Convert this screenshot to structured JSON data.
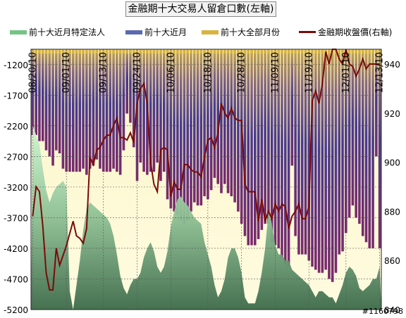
{
  "chart_data": {
    "type": "bar",
    "title": "金融期十大交易人留倉口數(左軸)",
    "legend": [
      {
        "name": "前十大近月特定法人",
        "color": "#74c484"
      },
      {
        "name": "前十大近月",
        "color": "#5a6ab0"
      },
      {
        "name": "前十大全部月份",
        "color": "#d9b340"
      },
      {
        "name": "金融期收盤價(右軸)",
        "color": "#7a0a0a"
      }
    ],
    "x_tick_labels": [
      "08/20/10",
      "09/01/10",
      "09/13/10",
      "09/24/10",
      "10/06/10",
      "10/18/10",
      "10/28/10",
      "11/09/10",
      "11/19/10",
      "12/01/10",
      "12/13/10"
    ],
    "y_left": {
      "ticks": [
        -1200,
        -1700,
        -2200,
        -2700,
        -3200,
        -3700,
        -4200,
        -4700,
        -5200
      ],
      "min": -5200,
      "max": -950
    },
    "y_right": {
      "ticks": [
        840,
        860,
        880,
        900,
        920,
        940
      ],
      "min": 840,
      "max": 946
    },
    "series": [
      {
        "name": "前十大全部月份",
        "kind": "bar-gradient",
        "values": [
          -2350,
          -2350,
          -2450,
          -2450,
          -2600,
          -2700,
          -2850,
          -2600,
          -2650,
          -2900,
          -2950,
          -2950,
          -2950,
          -2950,
          -2950,
          -2900,
          -3000,
          -2900,
          -2850,
          -2750,
          -2900,
          -2950,
          -2950,
          -2950,
          -2900,
          -2950,
          -3000,
          -2600,
          -2000,
          -2150,
          -2550,
          -3100,
          -2800,
          -2950,
          -3000,
          -2950,
          -2950,
          -2800,
          -3100,
          -2950,
          -3400,
          -3550,
          -3600,
          -3650,
          -3750,
          -3800,
          -3750,
          -3600,
          -3450,
          -3500,
          -3500,
          -3350,
          -3400,
          -3250,
          -3050,
          -3150,
          -3300,
          -3150,
          -3300,
          -3350,
          -3450,
          -3600,
          -3800,
          -4000,
          -4150,
          -4150,
          -4150,
          -4050,
          -3900,
          -3800,
          -3800,
          -4100,
          -4150,
          -4200,
          -4350,
          -4450,
          -4500,
          -2850,
          -4000,
          -4300,
          -4300,
          -4300,
          -4400,
          -4500,
          -4550,
          -4600,
          -4600,
          -4550,
          -4700,
          -4750,
          -4600,
          -4300,
          -4250,
          -3950,
          -3700,
          -3500,
          -3700,
          -3800,
          -4000,
          -4100,
          -4200,
          -4200,
          -2700,
          -4200
        ],
        "color": "#5a3a8a"
      },
      {
        "name": "前十大近月特定法人",
        "kind": "area",
        "values": [
          -2200,
          -2350,
          -2500,
          -2900,
          -3250,
          -3450,
          -3300,
          -3200,
          -3150,
          -3100,
          -3200,
          -4900,
          -5200,
          -4800,
          -4400,
          -3900,
          -3550,
          -3450,
          -3500,
          -3550,
          -3600,
          -3650,
          -3700,
          -3800,
          -4000,
          -4300,
          -4650,
          -4850,
          -4950,
          -4800,
          -4700,
          -4700,
          -4600,
          -4350,
          -4200,
          -4100,
          -4250,
          -4500,
          -4600,
          -4500,
          -4250,
          -3850,
          -3600,
          -3400,
          -3350,
          -3450,
          -3500,
          -3600,
          -3700,
          -3750,
          -3800,
          -4100,
          -4300,
          -4500,
          -4800,
          -5000,
          -4900,
          -4700,
          -4350,
          -4200,
          -4200,
          -4350,
          -4600,
          -5000,
          -5100,
          -5100,
          -5100,
          -4900,
          -4600,
          -4200,
          -3600,
          -3800,
          -4150,
          -4300,
          -4300,
          -4400,
          -4400,
          -4550,
          -4600,
          -4650,
          -4700,
          -4750,
          -4800,
          -4900,
          -5000,
          -4900,
          -4900,
          -4950,
          -5000,
          -5000,
          -5100,
          -4950,
          -4800,
          -4600,
          -4500,
          -4550,
          -4650,
          -4850,
          -4900,
          -4850,
          -4800,
          -4700,
          -4700,
          -4500
        ],
        "color": "#74c484"
      },
      {
        "name": "金融期收盤價(右軸)",
        "kind": "line",
        "values": [
          878,
          890,
          888,
          874,
          855,
          848,
          848,
          865,
          858,
          862,
          866,
          871,
          876,
          870,
          869,
          867,
          873,
          902,
          899,
          905,
          906,
          909,
          911,
          911,
          915,
          918,
          910,
          910,
          909,
          912,
          908,
          924,
          930,
          932,
          924,
          900,
          891,
          888,
          905,
          906,
          905,
          886,
          892,
          889,
          889,
          899,
          899,
          897,
          896,
          896,
          894,
          902,
          909,
          910,
          906,
          912,
          924,
          920,
          918,
          922,
          918,
          917,
          917,
          891,
          888,
          888,
          888,
          876,
          885,
          876,
          880,
          877,
          883,
          880,
          883,
          882,
          873,
          878,
          880,
          883,
          877,
          877,
          882,
          925,
          929,
          924,
          932,
          945,
          940,
          946,
          946,
          942,
          940,
          946,
          940,
          939,
          935,
          938,
          942,
          938,
          940,
          940,
          940,
          940
        ],
        "color": "#7a0a0a"
      }
    ],
    "watermark": "#1160798"
  }
}
